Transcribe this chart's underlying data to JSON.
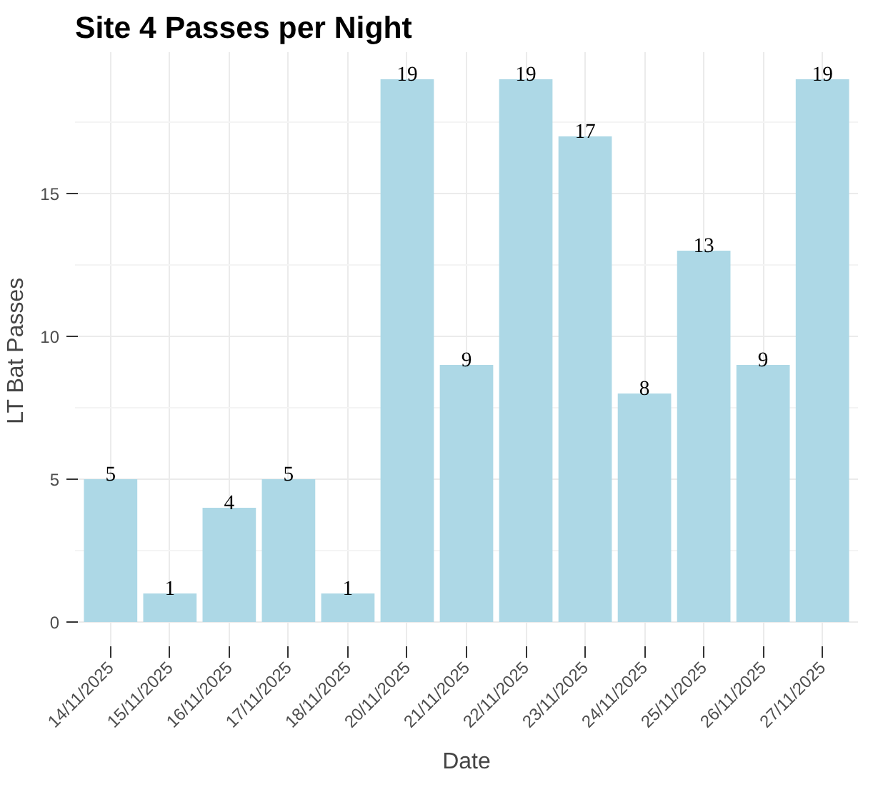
{
  "chart_data": {
    "type": "bar",
    "title": "Site 4 Passes per Night",
    "xlabel": "Date",
    "ylabel": "LT Bat Passes",
    "categories": [
      "14/11/2025",
      "15/11/2025",
      "16/11/2025",
      "17/11/2025",
      "18/11/2025",
      "20/11/2025",
      "21/11/2025",
      "22/11/2025",
      "23/11/2025",
      "24/11/2025",
      "25/11/2025",
      "26/11/2025",
      "27/11/2025"
    ],
    "values": [
      5,
      1,
      4,
      5,
      1,
      19,
      9,
      19,
      17,
      8,
      13,
      9,
      19
    ],
    "color": "#add8e6",
    "ylim": [
      -0.95,
      19.95
    ],
    "yticks": [
      0,
      5,
      10,
      15
    ],
    "grid": true,
    "data_labels": true
  }
}
